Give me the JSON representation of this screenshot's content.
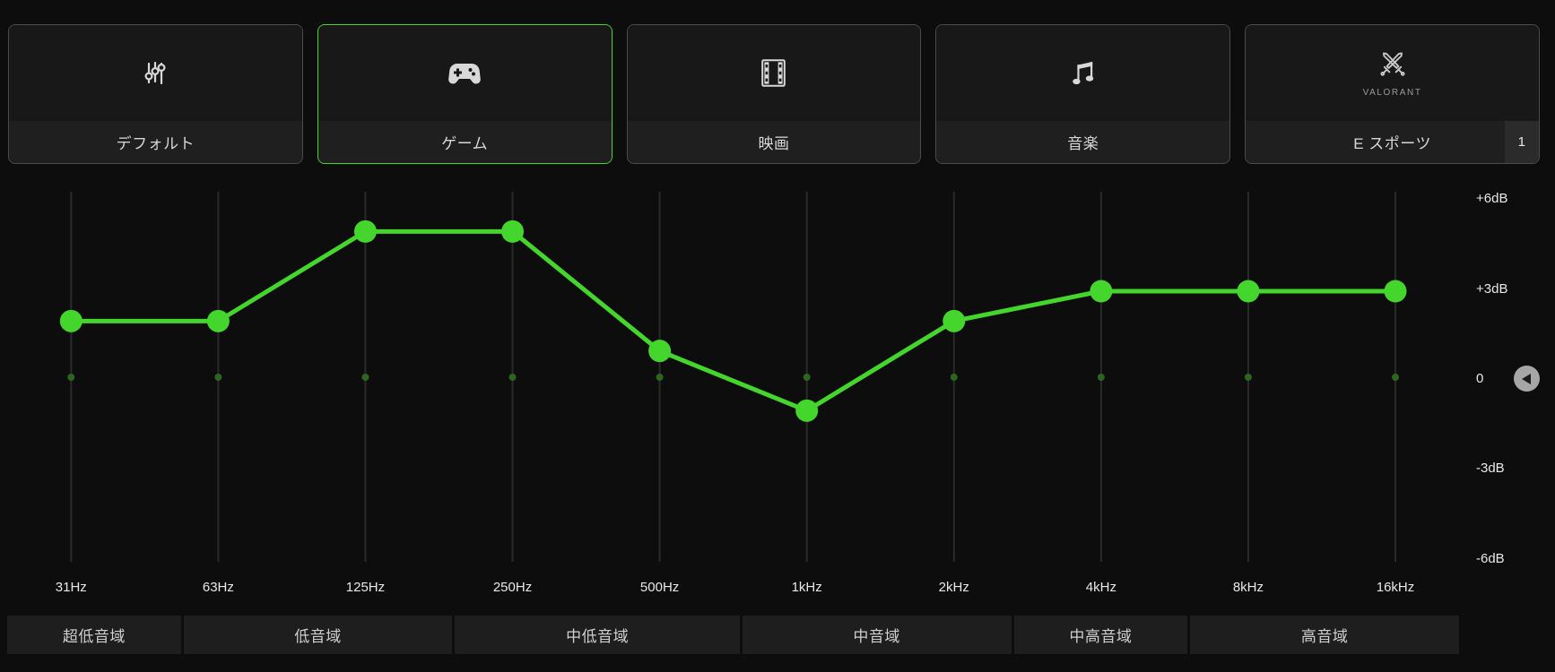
{
  "presets": [
    {
      "label": "デフォルト",
      "icon": "equalizer-sliders-icon",
      "selected": false
    },
    {
      "label": "ゲーム",
      "icon": "gamepad-icon",
      "selected": true
    },
    {
      "label": "映画",
      "icon": "film-strip-icon",
      "selected": false
    },
    {
      "label": "音楽",
      "icon": "music-note-icon",
      "selected": false
    },
    {
      "label": "E スポーツ",
      "icon": "crossed-swords-icon",
      "selected": false,
      "sublabel": "VALORANT",
      "badge": "1"
    }
  ],
  "chart_data": {
    "type": "line",
    "title": "equalizer-curve",
    "x_categories": [
      "31Hz",
      "63Hz",
      "125Hz",
      "250Hz",
      "500Hz",
      "1kHz",
      "2kHz",
      "4kHz",
      "8kHz",
      "16kHz"
    ],
    "values_db": [
      2,
      2,
      5,
      5,
      1,
      -1,
      2,
      3,
      3,
      3
    ],
    "y_tick_labels": [
      "+6dB",
      "+3dB",
      "0",
      "-3dB",
      "-6dB"
    ],
    "y_tick_values": [
      6,
      3,
      0,
      -3,
      -6
    ],
    "ylim": [
      -6.5,
      6.5
    ],
    "grid": "vertical-slider-tracks",
    "legend": "none",
    "line_color": "#44d62c"
  },
  "band_groups": [
    {
      "label": "超低音域",
      "bands": [
        "31Hz"
      ]
    },
    {
      "label": "低音域",
      "bands": [
        "63Hz",
        "125Hz"
      ]
    },
    {
      "label": "中低音域",
      "bands": [
        "250Hz",
        "500Hz"
      ]
    },
    {
      "label": "中音域",
      "bands": [
        "1kHz",
        "2kHz"
      ]
    },
    {
      "label": "中高音域",
      "bands": [
        "4kHz"
      ]
    },
    {
      "label": "高音域",
      "bands": [
        "8kHz",
        "16kHz"
      ]
    }
  ],
  "colors": {
    "accent": "#44d62c",
    "background": "#0d0d0d",
    "card_bg": "#181818",
    "card_strip_bg": "#1f1f1f",
    "badge_bg": "#2b2b2b",
    "band_strip_bg": "#1e1e1e",
    "track": "#2a2a2a"
  }
}
